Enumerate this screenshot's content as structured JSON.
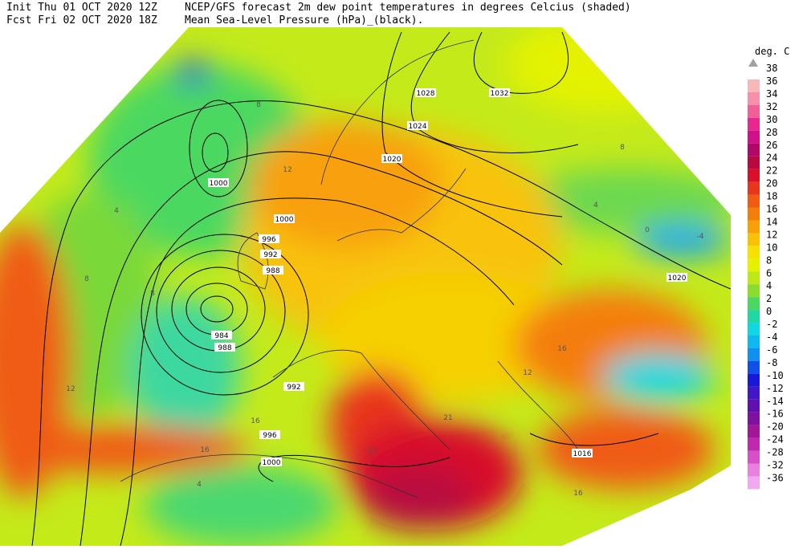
{
  "header": {
    "init": "Init  Thu 01 OCT 2020 12Z",
    "forecast": "Fcst Fri 02 OCT 2020 18Z",
    "title": "NCEP/GFS forecast 2m dew point temperatures in degrees Celcius (shaded)",
    "subtitle": "Mean Sea-Level Pressure (hPa)_(black)."
  },
  "legend": {
    "unit": "deg. C",
    "top": {
      "label": "38",
      "color": "#a0a0a0"
    },
    "entries": [
      {
        "label": "36",
        "color": "#f8b8b8"
      },
      {
        "label": "34",
        "color": "#f490a8"
      },
      {
        "label": "32",
        "color": "#f06098"
      },
      {
        "label": "30",
        "color": "#e82890"
      },
      {
        "label": "28",
        "color": "#d0108a"
      },
      {
        "label": "26",
        "color": "#b00868"
      },
      {
        "label": "24",
        "color": "#b80a40"
      },
      {
        "label": "22",
        "color": "#d8102a"
      },
      {
        "label": "20",
        "color": "#e8361e"
      },
      {
        "label": "18",
        "color": "#f05c14"
      },
      {
        "label": "16",
        "color": "#f47e0c"
      },
      {
        "label": "14",
        "color": "#f8a00a"
      },
      {
        "label": "12",
        "color": "#f8c208"
      },
      {
        "label": "10",
        "color": "#f6e200"
      },
      {
        "label": "8",
        "color": "#e4f200"
      },
      {
        "label": "6",
        "color": "#bce818"
      },
      {
        "label": "4",
        "color": "#8cdc30"
      },
      {
        "label": "2",
        "color": "#4cd860"
      },
      {
        "label": "0",
        "color": "#20d8a0"
      },
      {
        "label": "-2",
        "color": "#10d8e0"
      },
      {
        "label": "-4",
        "color": "#10b8f0"
      },
      {
        "label": "-6",
        "color": "#1090f0"
      },
      {
        "label": "-8",
        "color": "#1050e8"
      },
      {
        "label": "-10",
        "color": "#1818d8"
      },
      {
        "label": "-12",
        "color": "#4018c8"
      },
      {
        "label": "-14",
        "color": "#6010b0"
      },
      {
        "label": "-16",
        "color": "#8010a0"
      },
      {
        "label": "-20",
        "color": "#a01898"
      },
      {
        "label": "-24",
        "color": "#c028b0"
      },
      {
        "label": "-28",
        "color": "#d850c8"
      },
      {
        "label": "-32",
        "color": "#e880e0"
      },
      {
        "label": "-36",
        "color": "#f0a8f0"
      }
    ]
  },
  "map": {
    "isobar_labels": [
      "1028",
      "1032",
      "1024",
      "1020",
      "1000",
      "1000",
      "996",
      "992",
      "988",
      "984",
      "988",
      "992",
      "996",
      "1000",
      "1016",
      "1020"
    ],
    "dewpoint_labels": [
      "8",
      "12",
      "8",
      "4",
      "8",
      "12",
      "16",
      "16",
      "12",
      "16",
      "21",
      "21",
      "16",
      "4",
      "0",
      "-4",
      "4",
      "8"
    ]
  }
}
